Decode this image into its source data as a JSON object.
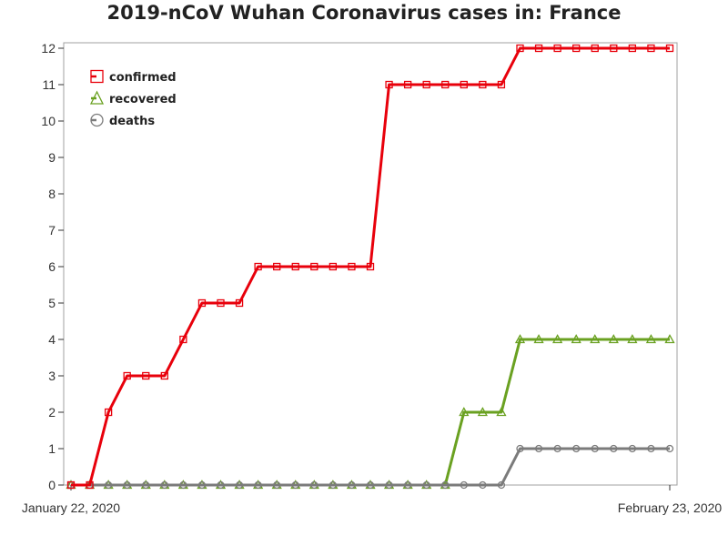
{
  "chart_data": {
    "type": "line",
    "title": "2019-nCoV Wuhan Coronavirus cases in: France",
    "xlabel": "",
    "ylabel": "",
    "x_start": "January 22, 2020",
    "x_end": "February 23, 2020",
    "x_tick_labels": [
      "January 22, 2020",
      "February 23, 2020"
    ],
    "ylim": [
      0,
      12
    ],
    "y_ticks": [
      0,
      1,
      2,
      3,
      4,
      5,
      6,
      7,
      8,
      9,
      10,
      11,
      12
    ],
    "grid": false,
    "legend_position": "top-left",
    "series": [
      {
        "name": "confirmed",
        "color": "#e8000b",
        "marker": "square",
        "values": [
          0,
          0,
          2,
          3,
          3,
          3,
          4,
          5,
          5,
          5,
          6,
          6,
          6,
          6,
          6,
          6,
          6,
          11,
          11,
          11,
          11,
          11,
          11,
          11,
          12,
          12,
          12,
          12,
          12,
          12,
          12,
          12,
          12
        ]
      },
      {
        "name": "recovered",
        "color": "#6aa121",
        "marker": "triangle",
        "values": [
          0,
          0,
          0,
          0,
          0,
          0,
          0,
          0,
          0,
          0,
          0,
          0,
          0,
          0,
          0,
          0,
          0,
          0,
          0,
          0,
          0,
          2,
          2,
          2,
          4,
          4,
          4,
          4,
          4,
          4,
          4,
          4,
          4
        ]
      },
      {
        "name": "deaths",
        "color": "#7b7b7b",
        "marker": "circle",
        "values": [
          0,
          0,
          0,
          0,
          0,
          0,
          0,
          0,
          0,
          0,
          0,
          0,
          0,
          0,
          0,
          0,
          0,
          0,
          0,
          0,
          0,
          0,
          0,
          0,
          1,
          1,
          1,
          1,
          1,
          1,
          1,
          1,
          1
        ]
      }
    ]
  }
}
